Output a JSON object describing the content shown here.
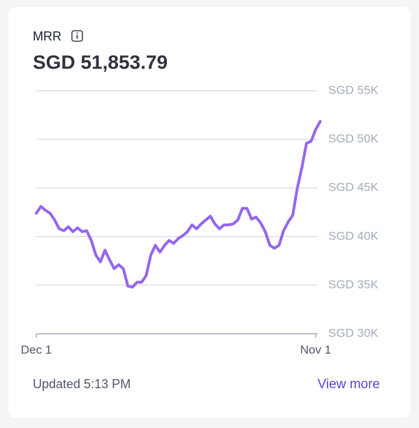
{
  "chart_data": {
    "type": "line",
    "title": "MRR",
    "subtitle": "SGD 51,853.79",
    "updated": "Updated 5:13 PM",
    "link": "View more",
    "categories": [
      "Dec 1",
      null,
      null,
      null,
      null,
      null,
      null,
      null,
      null,
      null,
      null,
      null,
      null,
      null,
      null,
      null,
      null,
      null,
      null,
      null,
      null,
      null,
      null,
      null,
      null,
      null,
      null,
      null,
      null,
      null,
      null,
      null,
      null,
      null,
      null,
      null,
      null,
      null,
      null,
      null,
      null,
      null,
      null,
      null,
      null,
      null,
      null,
      null,
      null,
      null,
      null,
      null,
      null,
      null,
      null,
      null,
      null,
      null,
      null,
      null,
      null,
      "Nov 1",
      null
    ],
    "series": [
      {
        "name": "MRR",
        "color": "#9466f0",
        "values": [
          42400,
          43100,
          42700,
          42400,
          41700,
          40800,
          40600,
          41000,
          40500,
          40900,
          40500,
          40600,
          39600,
          38100,
          37400,
          38600,
          37600,
          36700,
          37100,
          36700,
          34900,
          34800,
          35300,
          35300,
          36000,
          38100,
          39100,
          38400,
          39100,
          39600,
          39300,
          39800,
          40100,
          40500,
          41200,
          40800,
          41300,
          41700,
          42100,
          41300,
          40800,
          41200,
          41200,
          41300,
          41700,
          42900,
          42900,
          41800,
          42000,
          41400,
          40500,
          39100,
          38800,
          39100,
          40600,
          41500,
          42200,
          45000,
          47100,
          49600,
          49800,
          51000,
          51850
        ]
      }
    ],
    "ylim": [
      30000,
      55000
    ],
    "yticks": [
      {
        "value": 30000,
        "label": "SGD 30K"
      },
      {
        "value": 35000,
        "label": "SGD 35K"
      },
      {
        "value": 40000,
        "label": "SGD 40K"
      },
      {
        "value": 45000,
        "label": "SGD 45K"
      },
      {
        "value": 50000,
        "label": "SGD 50K"
      },
      {
        "value": 55000,
        "label": "SGD 55K"
      }
    ],
    "grid": true
  }
}
